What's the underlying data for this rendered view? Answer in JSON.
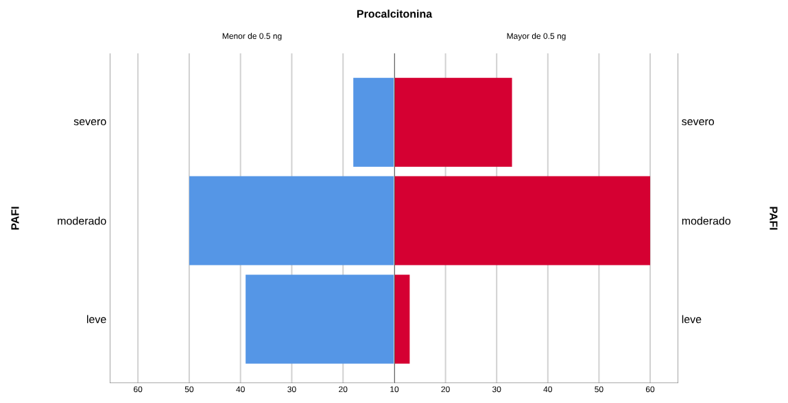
{
  "chart_data": [
    {
      "type": "bar",
      "orientation": "horizontal",
      "title": "Procalcitonina",
      "subtitle": "Menor de 0.5 ng",
      "ylabel": "PAFI",
      "categories": [
        "severo",
        "moderado",
        "leve"
      ],
      "values": [
        18,
        50,
        39
      ],
      "color": "#5596e6",
      "xlim": [
        65.5,
        10
      ],
      "xticks": [
        60,
        50,
        40,
        30,
        20
      ],
      "grid": "x"
    },
    {
      "type": "bar",
      "orientation": "horizontal",
      "subtitle": "Mayor de 0.5 ng",
      "ylabel": "PAFI",
      "categories": [
        "severo",
        "moderado",
        "leve"
      ],
      "values": [
        33,
        60,
        13
      ],
      "color": "#d50032",
      "xlim": [
        10,
        65.5
      ],
      "xticks": [
        10,
        20,
        30,
        40,
        50,
        60
      ],
      "grid": "x"
    }
  ]
}
